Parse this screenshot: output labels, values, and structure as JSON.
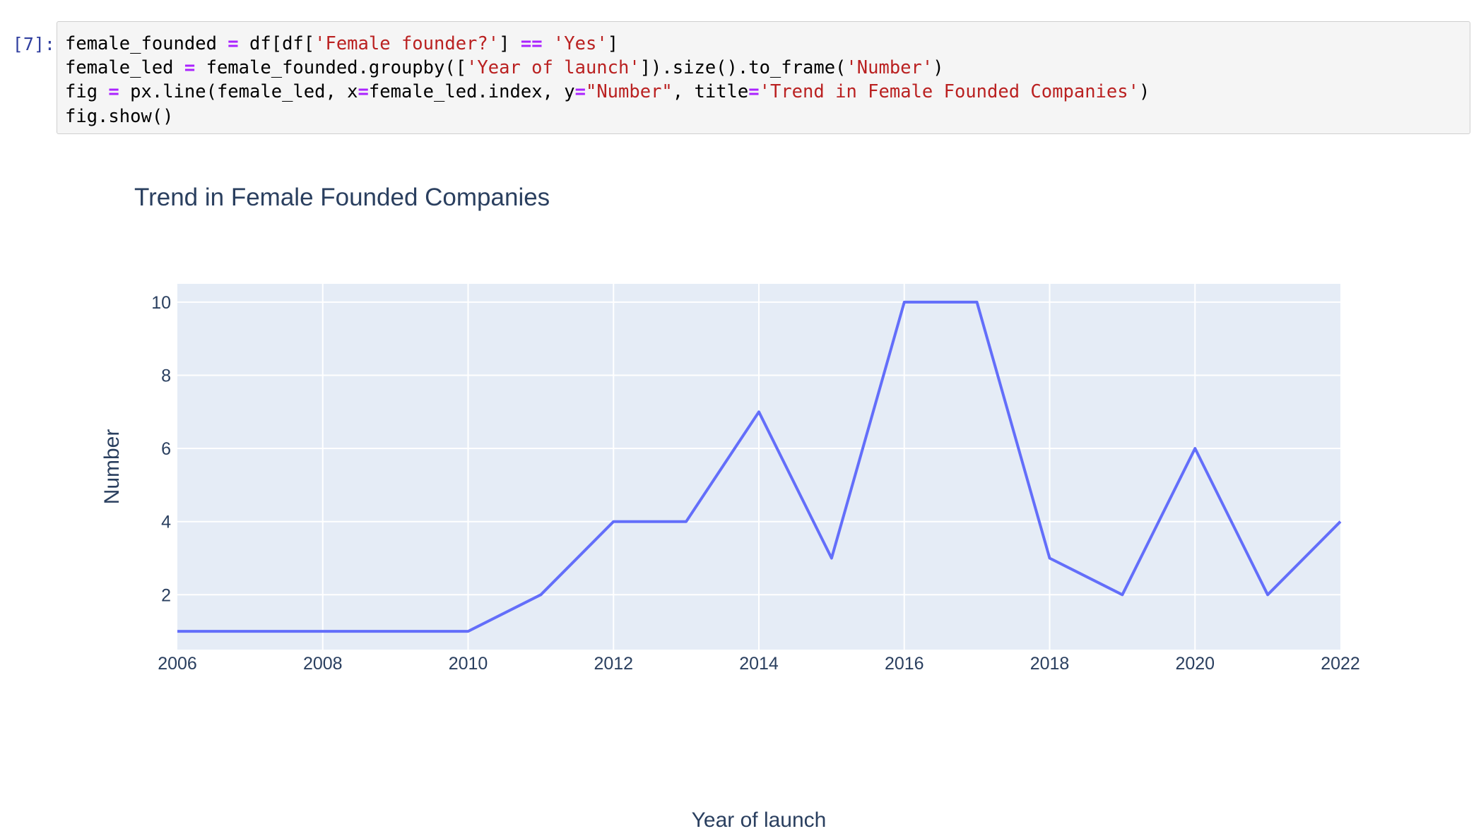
{
  "cell": {
    "prompt": "[7]:",
    "code_lines": [
      [
        {
          "t": "female_founded ",
          "k": "plain"
        },
        {
          "t": "=",
          "k": "op"
        },
        {
          "t": " df[df[",
          "k": "plain"
        },
        {
          "t": "'Female founder?'",
          "k": "str"
        },
        {
          "t": "] ",
          "k": "plain"
        },
        {
          "t": "==",
          "k": "op"
        },
        {
          "t": " ",
          "k": "plain"
        },
        {
          "t": "'Yes'",
          "k": "str"
        },
        {
          "t": "]",
          "k": "plain"
        }
      ],
      [
        {
          "t": "female_led ",
          "k": "plain"
        },
        {
          "t": "=",
          "k": "op"
        },
        {
          "t": " female_founded.groupby([",
          "k": "plain"
        },
        {
          "t": "'Year of launch'",
          "k": "str"
        },
        {
          "t": "]).size().to_frame(",
          "k": "plain"
        },
        {
          "t": "'Number'",
          "k": "str"
        },
        {
          "t": ")",
          "k": "plain"
        }
      ],
      [
        {
          "t": "fig ",
          "k": "plain"
        },
        {
          "t": "=",
          "k": "op"
        },
        {
          "t": " px.line(female_led, x",
          "k": "plain"
        },
        {
          "t": "=",
          "k": "op"
        },
        {
          "t": "female_led.index, y",
          "k": "plain"
        },
        {
          "t": "=",
          "k": "op"
        },
        {
          "t": "\"Number\"",
          "k": "str"
        },
        {
          "t": ", title",
          "k": "plain"
        },
        {
          "t": "=",
          "k": "op"
        },
        {
          "t": "'Trend in Female Founded Companies'",
          "k": "str"
        },
        {
          "t": ")",
          "k": "plain"
        }
      ],
      [
        {
          "t": "fig.show()",
          "k": "plain"
        }
      ]
    ]
  },
  "colors": {
    "plot_bg": "#e5ecf6",
    "grid": "#ffffff",
    "line": "#636efa",
    "text": "#2a3f5f",
    "code_string": "#ba2121",
    "code_operator": "#aa22ff",
    "prompt": "#303f9f"
  },
  "chart_data": {
    "type": "line",
    "title": "Trend in Female Founded Companies",
    "xlabel": "Year of launch",
    "ylabel": "Number",
    "x": [
      2006,
      2007,
      2008,
      2009,
      2010,
      2011,
      2012,
      2013,
      2014,
      2015,
      2016,
      2017,
      2018,
      2019,
      2020,
      2021,
      2022
    ],
    "series": [
      {
        "values": [
          1,
          1,
          1,
          1,
          1,
          2,
          4,
          4,
          7,
          3,
          10,
          10,
          3,
          2,
          6,
          2,
          4
        ]
      }
    ],
    "xticks": [
      "2006",
      "2008",
      "2010",
      "2012",
      "2014",
      "2016",
      "2018",
      "2020",
      "2022"
    ],
    "yticks": [
      "2",
      "4",
      "6",
      "8",
      "10"
    ],
    "xlim": [
      2006,
      2022
    ],
    "ylim": [
      0.5,
      10.5
    ],
    "grid": true
  }
}
